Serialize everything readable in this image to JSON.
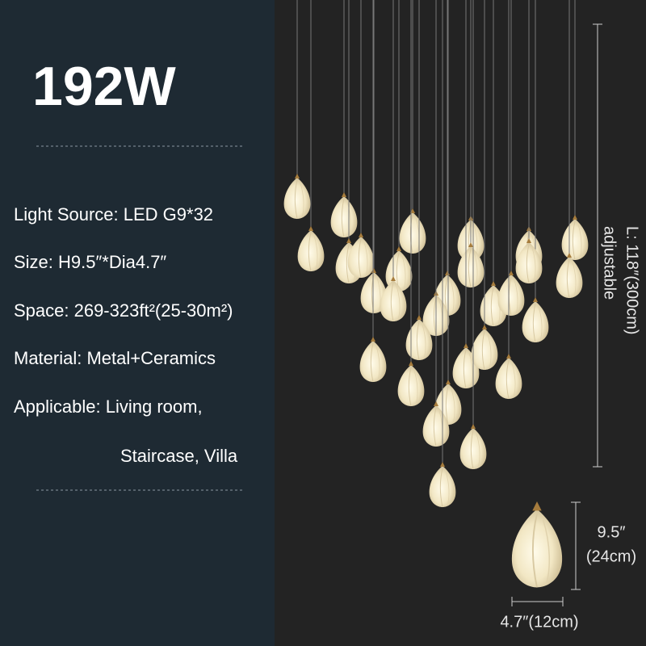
{
  "header": {
    "title": "192W"
  },
  "specs": [
    "Light Source: LED G9*32",
    "Size: H9.5″*Dia4.7″",
    "Space: 269-323ft²(25-30m²)",
    "Material: Metal+Ceramics",
    "Applicable: Living room,",
    "Staircase, Villa"
  ],
  "dimensions": {
    "length": "L: 118″(300cm)",
    "length_note": "adjustable",
    "height": "9.5″",
    "height_metric": "(24cm)",
    "diameter": "4.7″(12cm)"
  }
}
